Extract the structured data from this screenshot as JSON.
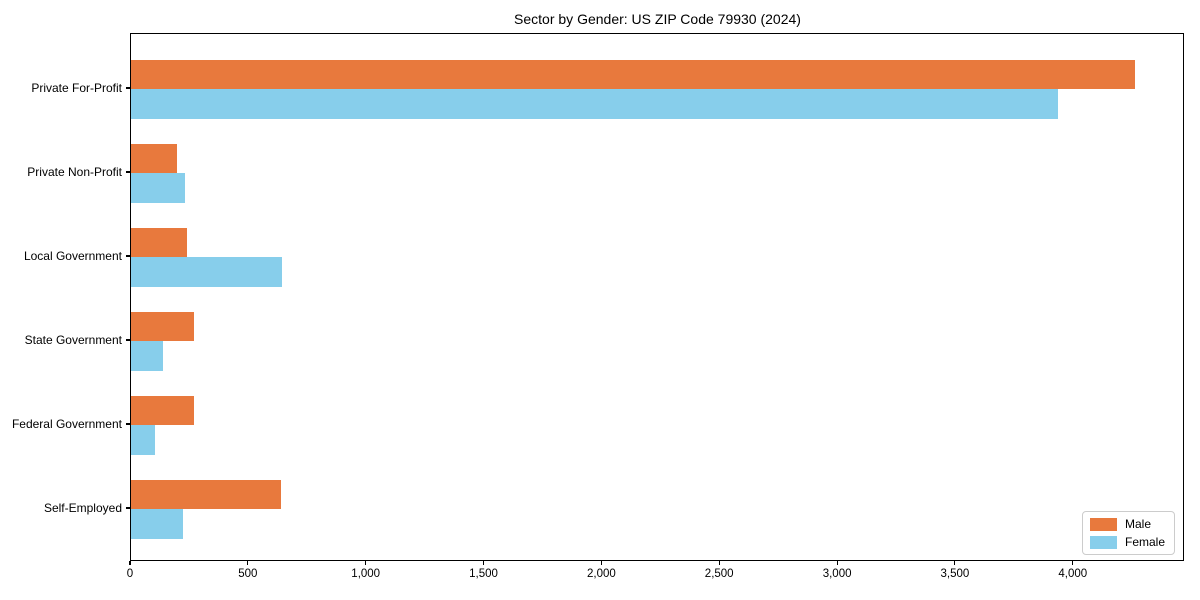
{
  "chart_data": {
    "type": "bar",
    "orientation": "horizontal",
    "title": "Sector by Gender: US ZIP Code 79930 (2024)",
    "categories": [
      "Private For-Profit",
      "Private Non-Profit",
      "Local Government",
      "State Government",
      "Federal Government",
      "Self-Employed"
    ],
    "series": [
      {
        "name": "Male",
        "color": "#e8793d",
        "values": [
          4260,
          195,
          238,
          268,
          265,
          636
        ]
      },
      {
        "name": "Female",
        "color": "#87ceeb",
        "values": [
          3935,
          227,
          640,
          134,
          100,
          219
        ]
      }
    ],
    "xlabel": "",
    "ylabel": "",
    "xlim": [
      0,
      4472
    ],
    "xticks": [
      0,
      500,
      1000,
      1500,
      2000,
      2500,
      3000,
      3500,
      4000
    ],
    "xtick_labels": [
      "0",
      "500",
      "1,000",
      "1,500",
      "2,000",
      "2,500",
      "3,000",
      "3,500",
      "4,000"
    ],
    "legend": {
      "position": "lower-right",
      "entries": [
        "Male",
        "Female"
      ]
    },
    "grid": false,
    "background": "#ffffff",
    "axis_color": "#000000"
  }
}
